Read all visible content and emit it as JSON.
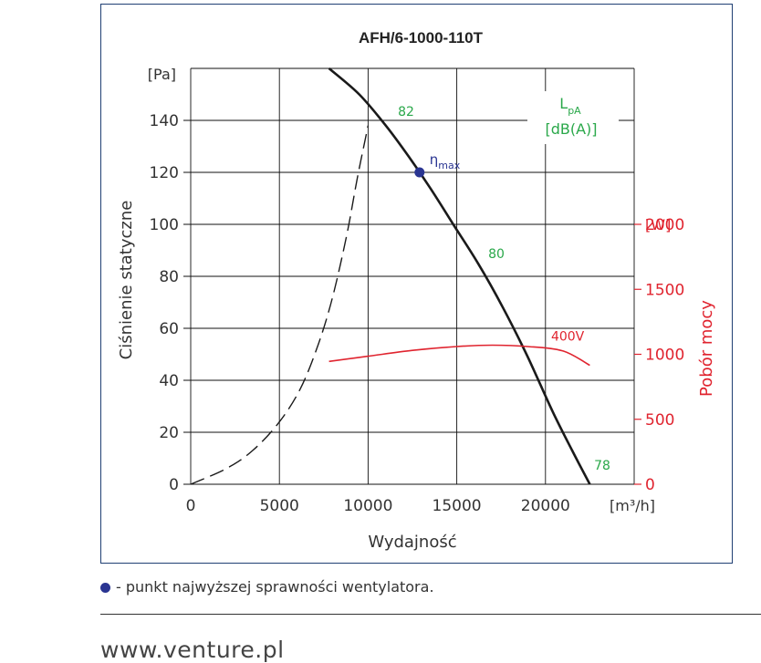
{
  "chart_data": {
    "type": "line",
    "title": "AFH/6-1000-110T",
    "xlabel": "Wydajność",
    "ylabel": "Ciśnienie statyczne",
    "y2label": "Pobór mocy",
    "x_unit": "[m³/h]",
    "y_unit": "[Pa]",
    "y2_unit": "[W]",
    "xlim": [
      0,
      25000
    ],
    "ylim": [
      0,
      160
    ],
    "y2lim": [
      0,
      3200
    ],
    "x_ticks": [
      0,
      5000,
      10000,
      15000,
      20000
    ],
    "y_ticks": [
      0,
      20,
      40,
      60,
      80,
      100,
      120,
      140
    ],
    "y2_ticks": [
      0,
      500,
      1000,
      1500,
      2000
    ],
    "grid": true,
    "series": [
      {
        "role": "fan-curve",
        "color": "#1a1a1a",
        "x": [
          7800,
          9500,
          11000,
          12300,
          13500,
          14800,
          16200,
          17600,
          19000,
          20400,
          21500,
          22500
        ],
        "y": [
          160,
          150,
          138,
          126,
          114,
          100,
          85,
          68,
          49,
          28,
          13,
          0
        ]
      },
      {
        "role": "system-curve",
        "color": "#1a1a1a",
        "dashed": true,
        "x": [
          0,
          2000,
          3500,
          5000,
          6200,
          7200,
          8000,
          8800,
          9400,
          10000
        ],
        "y": [
          0,
          6,
          13,
          24,
          37,
          54,
          72,
          96,
          118,
          138
        ]
      },
      {
        "name": "400V",
        "axis": "y2",
        "color": "#e0242f",
        "x": [
          7800,
          10000,
          12500,
          15000,
          17000,
          19000,
          21000,
          22500
        ],
        "y": [
          945,
          985,
          1030,
          1060,
          1070,
          1060,
          1025,
          915
        ]
      }
    ],
    "eta_max": {
      "x": 12900,
      "y": 120,
      "label": "η",
      "sub": "max"
    },
    "noise_labels": [
      "82",
      "80",
      "78"
    ],
    "noise_title": {
      "main": "L",
      "sub": "pA",
      "unit": "[dB(A)]"
    },
    "colors": {
      "frame": "#1f3f73",
      "noise": "#2aa84a",
      "power": "#e0242f",
      "eta": "#2a3592"
    }
  },
  "legend_note": "- punkt najwyższej sprawności wentylatora.",
  "footer": "www.venture.pl"
}
